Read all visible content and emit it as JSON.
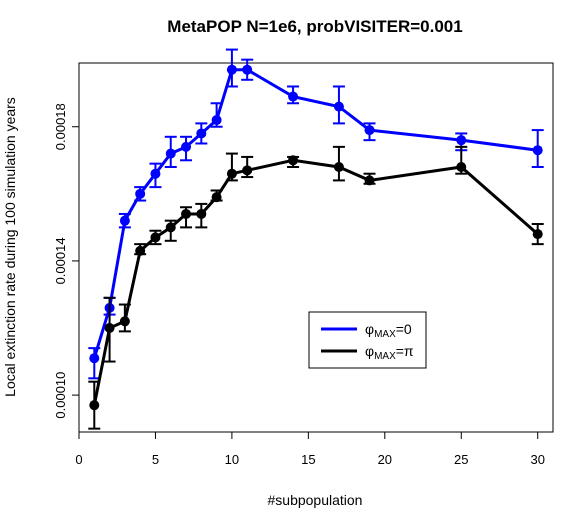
{
  "chart_data": {
    "type": "line",
    "title": "MetaPOP N=1e6, probVISITER=0.001",
    "xlabel": "#subpopulation",
    "ylabel": "Local extinction rate during 100 simulation years",
    "xlim": [
      0,
      31
    ],
    "ylim": [
      8.9e-05,
      0.000199
    ],
    "x_ticks": [
      0,
      5,
      10,
      15,
      20,
      25,
      30
    ],
    "x_tick_labels": [
      "0",
      "5",
      "10",
      "15",
      "20",
      "25",
      "30"
    ],
    "y_ticks": [
      0.0001,
      0.00014,
      0.00018
    ],
    "y_tick_labels": [
      "0.00010",
      "0.00014",
      "0.00018"
    ],
    "grid": false,
    "legend_position": "center-right",
    "series": [
      {
        "name": "φMAX=0",
        "legend_base": "φ",
        "legend_sub": "MAX",
        "legend_tail": "=0",
        "color": "#0000ff",
        "x": [
          1,
          2,
          3,
          4,
          5,
          6,
          7,
          8,
          9,
          10,
          11,
          14,
          17,
          19,
          25,
          30
        ],
        "y": [
          0.000111,
          0.000126,
          0.000152,
          0.00016,
          0.000166,
          0.000172,
          0.000174,
          0.000178,
          0.000182,
          0.000197,
          0.000197,
          0.000189,
          0.000186,
          0.000179,
          0.000176,
          0.000173
        ],
        "err_low": [
          0.000105,
          0.000124,
          0.00015,
          0.000158,
          0.000162,
          0.000168,
          0.00017,
          0.000175,
          0.00018,
          0.000192,
          0.000194,
          0.000187,
          0.000181,
          0.000176,
          0.000173,
          0.000168
        ],
        "err_high": [
          0.000114,
          0.000129,
          0.000154,
          0.000162,
          0.000169,
          0.000177,
          0.000177,
          0.000181,
          0.000187,
          0.000203,
          0.0002,
          0.000192,
          0.000192,
          0.000181,
          0.000178,
          0.000179
        ]
      },
      {
        "name": "φMAX=π",
        "legend_base": "φ",
        "legend_sub": "MAX",
        "legend_tail": "=π",
        "color": "#000000",
        "x": [
          1,
          2,
          3,
          4,
          5,
          6,
          7,
          8,
          9,
          10,
          11,
          14,
          17,
          19,
          25,
          30
        ],
        "y": [
          9.7e-05,
          0.00012,
          0.000122,
          0.000143,
          0.000147,
          0.00015,
          0.000154,
          0.000154,
          0.000159,
          0.000166,
          0.000167,
          0.00017,
          0.000168,
          0.000164,
          0.000168,
          0.000148
        ],
        "err_low": [
          9e-05,
          0.00011,
          0.000119,
          0.000142,
          0.000145,
          0.000146,
          0.00015,
          0.00015,
          0.000158,
          0.000164,
          0.000165,
          0.000168,
          0.000164,
          0.000163,
          0.000166,
          0.000145
        ],
        "err_high": [
          0.000104,
          0.000129,
          0.000127,
          0.000145,
          0.000149,
          0.000152,
          0.000156,
          0.000157,
          0.000161,
          0.000172,
          0.000171,
          0.000171,
          0.000174,
          0.000166,
          0.000174,
          0.000151
        ]
      }
    ]
  }
}
